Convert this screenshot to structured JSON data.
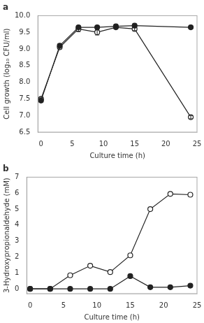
{
  "chart_data": [
    {
      "type": "line",
      "title": "a",
      "xlabel": "Culture time (h)",
      "ylabel": "Cell growth (log₁₀ CFU/ml)",
      "xlim": [
        -0.5,
        25
      ],
      "ylim": [
        6.5,
        10.0
      ],
      "xticks": [
        0,
        5,
        10,
        15,
        20,
        25
      ],
      "yticks": [
        6.5,
        {
          "value": 7.0,
          "label": "7.0"
        },
        7.5,
        {
          "value": 8.0,
          "label": "8.0"
        },
        8.5,
        {
          "value": 9.0,
          "label": "9.0"
        },
        9.5,
        {
          "value": 10.0,
          "label": "10.0"
        }
      ],
      "grid": false,
      "x": [
        0,
        3,
        6,
        9,
        12,
        15,
        24
      ],
      "series": [
        {
          "color": "#222222",
          "marker": "circle",
          "values": [
            7.45,
            9.1,
            9.65,
            9.65,
            9.68,
            9.7,
            9.65
          ],
          "errors": [
            0.05,
            0.05,
            0.05,
            0.05,
            0.05,
            0.05,
            0.05
          ]
        },
        {
          "color": "#222222",
          "marker": "open_circle",
          "values": [
            7.5,
            9.05,
            9.6,
            9.5,
            9.65,
            9.6,
            6.95
          ],
          "errors": [
            0.05,
            0.05,
            0.08,
            0.08,
            0.05,
            0.05,
            0.05
          ]
        }
      ]
    },
    {
      "type": "line",
      "title": "b",
      "xlabel": "Culture time (h)",
      "ylabel": "3-Hydroxypropionaldehyde (mM)",
      "xlim": [
        -0.5,
        25
      ],
      "ylim": [
        -0.3,
        7
      ],
      "xticks": [
        0,
        5,
        10,
        15,
        20,
        25
      ],
      "yticks": [
        0,
        1,
        2,
        3,
        4,
        5,
        6,
        7
      ],
      "grid": false,
      "x": [
        0,
        3,
        6,
        9,
        12,
        15,
        18,
        21,
        24
      ],
      "series": [
        {
          "color": "#222222",
          "marker": "circle",
          "values": [
            0.0,
            0.0,
            0.0,
            0.0,
            0.0,
            0.8,
            0.1,
            0.1,
            0.2
          ]
        },
        {
          "color": "#222222",
          "marker": "open_circle",
          "values": [
            0.0,
            0.0,
            0.85,
            1.45,
            1.05,
            2.1,
            5.0,
            5.95,
            5.9
          ]
        }
      ]
    }
  ]
}
